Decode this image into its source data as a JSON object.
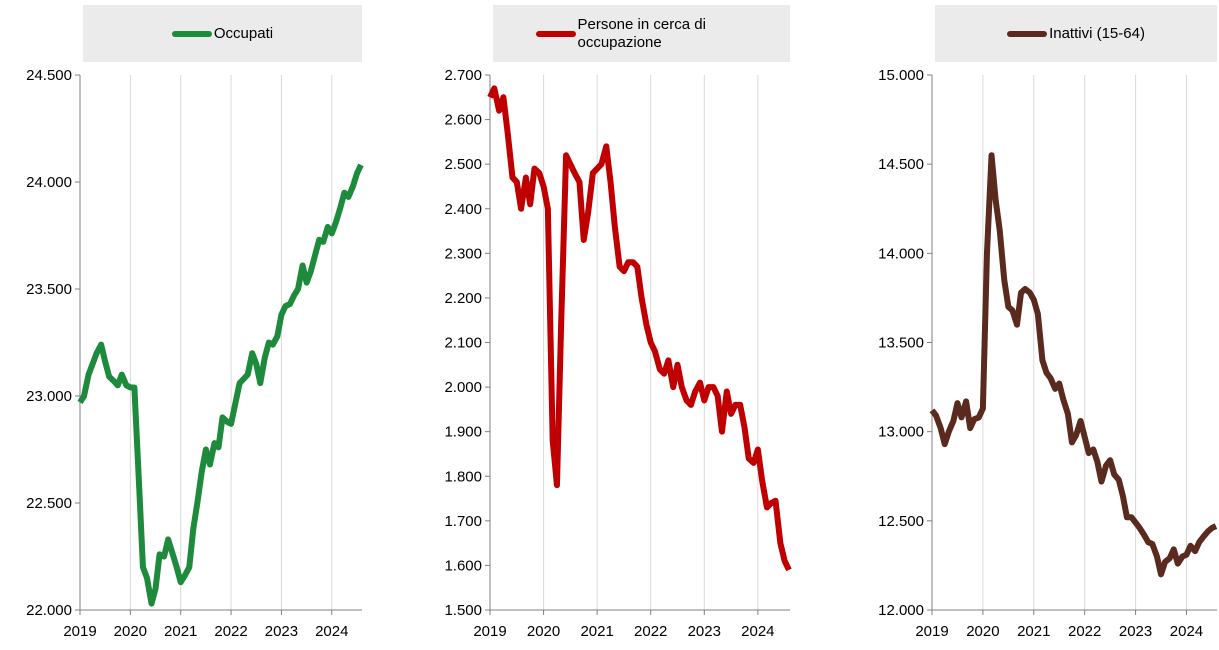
{
  "chart_data": [
    {
      "type": "line",
      "x": [
        2019,
        2019.08,
        2019.17,
        2019.25,
        2019.33,
        2019.42,
        2019.5,
        2019.58,
        2019.67,
        2019.75,
        2019.83,
        2019.92,
        2020,
        2020.08,
        2020.17,
        2020.25,
        2020.33,
        2020.42,
        2020.5,
        2020.58,
        2020.67,
        2020.75,
        2020.83,
        2020.92,
        2021,
        2021.08,
        2021.17,
        2021.25,
        2021.33,
        2021.42,
        2021.5,
        2021.58,
        2021.67,
        2021.75,
        2021.83,
        2021.92,
        2022,
        2022.08,
        2022.17,
        2022.25,
        2022.33,
        2022.42,
        2022.5,
        2022.58,
        2022.67,
        2022.75,
        2022.83,
        2022.92,
        2023,
        2023.08,
        2023.17,
        2023.25,
        2023.33,
        2023.42,
        2023.5,
        2023.58,
        2023.67,
        2023.75,
        2023.83,
        2023.92,
        2024,
        2024.08,
        2024.17,
        2024.25,
        2024.33,
        2024.42,
        2024.5,
        2024.58
      ],
      "series": [
        {
          "name": "Occupati",
          "color": "#1e8a3b",
          "values": [
            22970,
            23000,
            23100,
            23150,
            23200,
            23240,
            23160,
            23090,
            23070,
            23050,
            23100,
            23050,
            23040,
            23040,
            22600,
            22200,
            22150,
            22030,
            22100,
            22260,
            22250,
            22330,
            22270,
            22200,
            22130,
            22160,
            22200,
            22380,
            22500,
            22650,
            22750,
            22680,
            22780,
            22760,
            22900,
            22880,
            22870,
            22960,
            23060,
            23080,
            23100,
            23200,
            23150,
            23060,
            23180,
            23250,
            23240,
            23280,
            23380,
            23420,
            23430,
            23470,
            23500,
            23610,
            23530,
            23580,
            23660,
            23730,
            23720,
            23790,
            23760,
            23810,
            23880,
            23950,
            23930,
            23980,
            24040,
            24080
          ]
        }
      ],
      "xlim": [
        2019,
        2024.6
      ],
      "xticks": [
        2019,
        2020,
        2021,
        2022,
        2023,
        2024
      ],
      "ylim": [
        22000,
        24500
      ],
      "yticks": [
        {
          "value": 22000,
          "label": "22.000"
        },
        {
          "value": 22500,
          "label": "22.500"
        },
        {
          "value": 23000,
          "label": "23.000"
        },
        {
          "value": 23500,
          "label": "23.500"
        },
        {
          "value": 24000,
          "label": "24.000"
        },
        {
          "value": 24500,
          "label": "24.500"
        }
      ],
      "grid": "x"
    },
    {
      "type": "line",
      "x": [
        2019,
        2019.08,
        2019.17,
        2019.25,
        2019.33,
        2019.42,
        2019.5,
        2019.58,
        2019.67,
        2019.75,
        2019.83,
        2019.92,
        2020,
        2020.08,
        2020.17,
        2020.25,
        2020.33,
        2020.42,
        2020.5,
        2020.58,
        2020.67,
        2020.75,
        2020.83,
        2020.92,
        2021,
        2021.08,
        2021.17,
        2021.25,
        2021.33,
        2021.42,
        2021.5,
        2021.58,
        2021.67,
        2021.75,
        2021.83,
        2021.92,
        2022,
        2022.08,
        2022.17,
        2022.25,
        2022.33,
        2022.42,
        2022.5,
        2022.58,
        2022.67,
        2022.75,
        2022.83,
        2022.92,
        2023,
        2023.08,
        2023.17,
        2023.25,
        2023.33,
        2023.42,
        2023.5,
        2023.58,
        2023.67,
        2023.75,
        2023.83,
        2023.92,
        2024,
        2024.08,
        2024.17,
        2024.25,
        2024.33,
        2024.42,
        2024.5,
        2024.58
      ],
      "series": [
        {
          "name": "Persone in cerca di occupazione",
          "color": "#c00000",
          "values": [
            2650,
            2670,
            2620,
            2650,
            2570,
            2470,
            2460,
            2400,
            2470,
            2410,
            2490,
            2480,
            2450,
            2400,
            1880,
            1780,
            2150,
            2520,
            2500,
            2480,
            2460,
            2330,
            2390,
            2480,
            2490,
            2500,
            2540,
            2460,
            2360,
            2270,
            2260,
            2280,
            2280,
            2270,
            2200,
            2140,
            2100,
            2080,
            2040,
            2030,
            2060,
            2000,
            2050,
            2000,
            1970,
            1960,
            1990,
            2010,
            1970,
            2000,
            2000,
            1980,
            1900,
            1990,
            1940,
            1960,
            1960,
            1910,
            1840,
            1830,
            1860,
            1790,
            1730,
            1740,
            1745,
            1650,
            1610,
            1590
          ]
        }
      ],
      "xlim": [
        2019,
        2024.6
      ],
      "xticks": [
        2019,
        2020,
        2021,
        2022,
        2023,
        2024
      ],
      "ylim": [
        1500,
        2700
      ],
      "yticks": [
        {
          "value": 1500,
          "label": "1.500"
        },
        {
          "value": 1600,
          "label": "1.600"
        },
        {
          "value": 1700,
          "label": "1.700"
        },
        {
          "value": 1800,
          "label": "1.800"
        },
        {
          "value": 1900,
          "label": "1.900"
        },
        {
          "value": 2000,
          "label": "2.000"
        },
        {
          "value": 2100,
          "label": "2.100"
        },
        {
          "value": 2200,
          "label": "2.200"
        },
        {
          "value": 2300,
          "label": "2.300"
        },
        {
          "value": 2400,
          "label": "2.400"
        },
        {
          "value": 2500,
          "label": "2.500"
        },
        {
          "value": 2600,
          "label": "2.600"
        },
        {
          "value": 2700,
          "label": "2.700"
        }
      ],
      "grid": "x"
    },
    {
      "type": "line",
      "x": [
        2019,
        2019.08,
        2019.17,
        2019.25,
        2019.33,
        2019.42,
        2019.5,
        2019.58,
        2019.67,
        2019.75,
        2019.83,
        2019.92,
        2020,
        2020.08,
        2020.17,
        2020.25,
        2020.33,
        2020.42,
        2020.5,
        2020.58,
        2020.67,
        2020.75,
        2020.83,
        2020.92,
        2021,
        2021.08,
        2021.17,
        2021.25,
        2021.33,
        2021.42,
        2021.5,
        2021.58,
        2021.67,
        2021.75,
        2021.83,
        2021.92,
        2022,
        2022.08,
        2022.17,
        2022.25,
        2022.33,
        2022.42,
        2022.5,
        2022.58,
        2022.67,
        2022.75,
        2022.83,
        2022.92,
        2023,
        2023.08,
        2023.17,
        2023.25,
        2023.33,
        2023.42,
        2023.5,
        2023.58,
        2023.67,
        2023.75,
        2023.83,
        2023.92,
        2024,
        2024.08,
        2024.17,
        2024.25,
        2024.33,
        2024.42,
        2024.5,
        2024.58
      ],
      "series": [
        {
          "name": "Inattivi (15-64)",
          "color": "#5b2a1e",
          "values": [
            13120,
            13090,
            13020,
            12930,
            13000,
            13060,
            13160,
            13080,
            13170,
            13020,
            13070,
            13080,
            13130,
            14000,
            14550,
            14300,
            14130,
            13850,
            13700,
            13680,
            13600,
            13780,
            13800,
            13780,
            13740,
            13660,
            13400,
            13330,
            13300,
            13240,
            13270,
            13180,
            13100,
            12940,
            12980,
            13060,
            12970,
            12880,
            12900,
            12830,
            12720,
            12810,
            12840,
            12760,
            12730,
            12640,
            12520,
            12520,
            12490,
            12460,
            12420,
            12380,
            12370,
            12300,
            12200,
            12270,
            12290,
            12340,
            12260,
            12300,
            12310,
            12360,
            12330,
            12380,
            12410,
            12440,
            12460,
            12470
          ]
        }
      ],
      "xlim": [
        2019,
        2024.6
      ],
      "xticks": [
        2019,
        2020,
        2021,
        2022,
        2023,
        2024
      ],
      "ylim": [
        12000,
        15000
      ],
      "yticks": [
        {
          "value": 12000,
          "label": "12.000"
        },
        {
          "value": 12500,
          "label": "12.500"
        },
        {
          "value": 13000,
          "label": "13.000"
        },
        {
          "value": 13500,
          "label": "13.500"
        },
        {
          "value": 14000,
          "label": "14.000"
        },
        {
          "value": 14500,
          "label": "14.500"
        },
        {
          "value": 15000,
          "label": "15.000"
        }
      ],
      "grid": "x"
    }
  ]
}
